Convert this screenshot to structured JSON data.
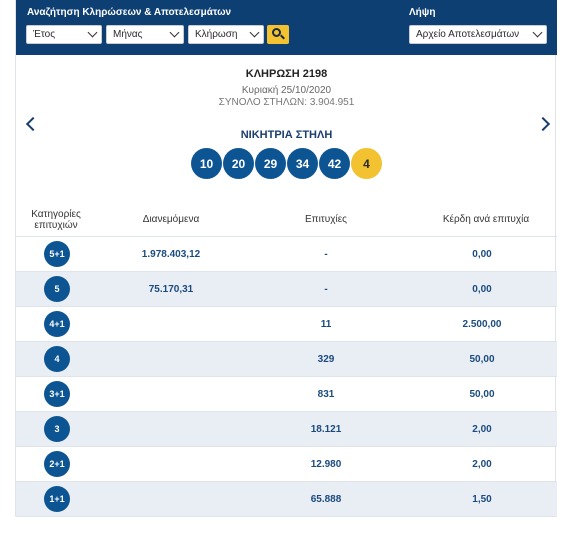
{
  "header": {
    "search_label": "Αναζήτηση Κληρώσεων & Αποτελεσμάτων",
    "download_label": "Λήψη",
    "year_select": "Έτος",
    "month_select": "Μήνας",
    "draw_select": "Κλήρωση",
    "archive_select": "Αρχείο Αποτελεσμάτων"
  },
  "draw": {
    "title": "ΚΛΗΡΩΣΗ 2198",
    "date": "Κυριακή 25/10/2020",
    "total": "ΣΥΝΟΛΟ ΣΤΗΛΩΝ: 3.904.951",
    "winning_title": "ΝΙΚΗΤΡΙΑ ΣΤΗΛΗ",
    "numbers": [
      "10",
      "20",
      "29",
      "34",
      "42"
    ],
    "joker": "4"
  },
  "table": {
    "headers": {
      "category": "Κατηγορίες επιτυχιών",
      "distributed": "Διανεμόμενα",
      "successes": "Επιτυχίες",
      "prize": "Κέρδη ανά επιτυχία"
    },
    "rows": [
      {
        "cat": "5+1",
        "distributed": "1.978.403,12",
        "successes": "-",
        "prize": "0,00"
      },
      {
        "cat": "5",
        "distributed": "75.170,31",
        "successes": "-",
        "prize": "0,00"
      },
      {
        "cat": "4+1",
        "distributed": "",
        "successes": "11",
        "prize": "2.500,00"
      },
      {
        "cat": "4",
        "distributed": "",
        "successes": "329",
        "prize": "50,00"
      },
      {
        "cat": "3+1",
        "distributed": "",
        "successes": "831",
        "prize": "50,00"
      },
      {
        "cat": "3",
        "distributed": "",
        "successes": "18.121",
        "prize": "2,00"
      },
      {
        "cat": "2+1",
        "distributed": "",
        "successes": "12.980",
        "prize": "2,00"
      },
      {
        "cat": "1+1",
        "distributed": "",
        "successes": "65.888",
        "prize": "1,50"
      }
    ]
  },
  "icons": {
    "search": "search-icon",
    "prev": "chevron-left-icon",
    "next": "chevron-right-icon",
    "dropdown": "chevron-down-icon"
  },
  "colors": {
    "header_bg": "#0d3f72",
    "ball": "#0d5592",
    "joker": "#f2c230",
    "alt_row": "#e9edf4"
  }
}
